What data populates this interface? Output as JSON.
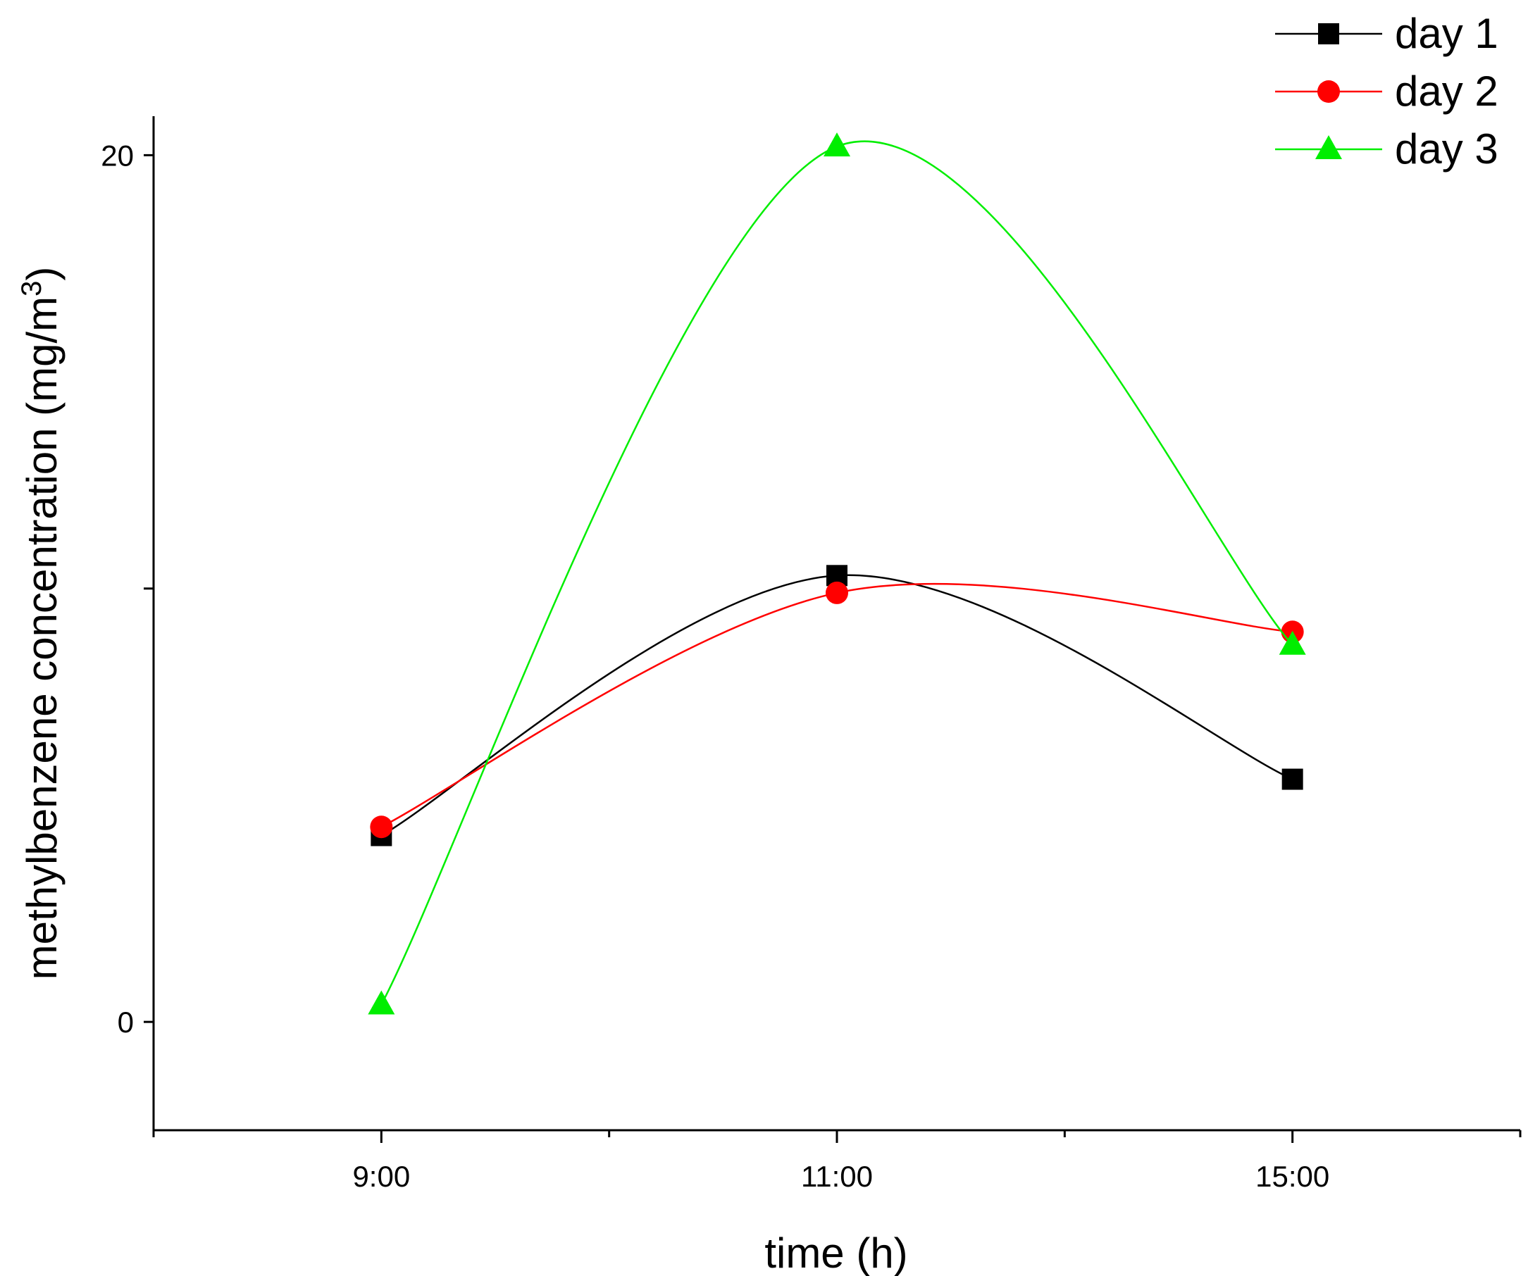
{
  "chart_data": {
    "type": "line",
    "title": "",
    "xlabel": "time (h)",
    "ylabel": "methylbenzene concentration (mg/m",
    "ylabel_superscript": "3",
    "ylabel_close": ")",
    "categories": [
      "9:00",
      "11:00",
      "15:00"
    ],
    "x_positions": [
      1,
      3,
      5
    ],
    "xlim": [
      0,
      6
    ],
    "ylim": [
      -2.5,
      20.9
    ],
    "yticks": [
      0,
      10,
      20
    ],
    "ytick_labels": {
      "0": "0",
      "20": "20"
    },
    "smooth": true,
    "legend": "top-right",
    "series": [
      {
        "name": "day 1",
        "values": [
          4.3,
          10.3,
          5.6
        ],
        "color": "#000000",
        "marker": "square"
      },
      {
        "name": "day 2",
        "values": [
          4.5,
          9.9,
          9.0
        ],
        "color": "#ff0000",
        "marker": "circle"
      },
      {
        "name": "day 3",
        "values": [
          0.4,
          20.2,
          8.7
        ],
        "color": "#00ee00",
        "marker": "triangle"
      }
    ]
  }
}
